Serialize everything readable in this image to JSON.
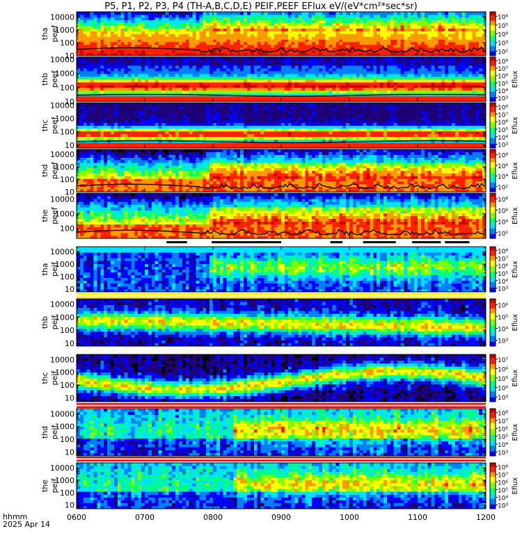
{
  "title": "P5, P1, P2, P3, P4 (TH-A,B,C,D,E) PEIF,PEEF EFlux eV/(eV*cm²*sec*sr)",
  "x_axis": {
    "label_line1": "hhmm",
    "label_line2": "2025 Apr 14",
    "ticks": [
      "0600",
      "0700",
      "0800",
      "0900",
      "1000",
      "1100",
      "1200"
    ]
  },
  "colors": {
    "colormap": [
      "#000000",
      "#1e0078",
      "#0000ff",
      "#0080ff",
      "#00e0ff",
      "#00ff80",
      "#80ff00",
      "#ffff00",
      "#ff9900",
      "#ff2200",
      "#cc0000"
    ],
    "strip_red": "#ff0000",
    "strip_yellow": "#ffee00",
    "trace": "#000000"
  },
  "chart_data": [
    {
      "type": "heatmap",
      "panel": "tha peef",
      "ylabel_top": "tha",
      "ylabel_bottom": "peef",
      "y_ticks": [
        "10",
        "100",
        "1000",
        "10000"
      ],
      "y_scale": "log",
      "y_range": [
        10,
        25000
      ],
      "colorbar_label": "",
      "colorbar_ticks": [
        "10²",
        "10³",
        "10⁴",
        "10⁵",
        "10⁶"
      ],
      "has_trace": true,
      "strip_above": ""
    },
    {
      "type": "heatmap",
      "panel": "thb peef",
      "ylabel_top": "thb",
      "ylabel_bottom": "peef",
      "y_ticks": [
        "10",
        "100",
        "1000",
        "10000"
      ],
      "y_scale": "log",
      "y_range": [
        10,
        15000
      ],
      "colorbar_label": "Eflux",
      "colorbar_ticks": [
        "10³",
        "10⁴",
        "10⁵",
        "10⁶",
        "10⁷",
        "10⁸"
      ],
      "has_trace": true,
      "strip_above": ""
    },
    {
      "type": "heatmap",
      "panel": "thc peef",
      "ylabel_top": "thc",
      "ylabel_bottom": "peef",
      "y_ticks": [
        "10",
        "100",
        "1000",
        "10000"
      ],
      "y_scale": "log",
      "y_range": [
        6,
        15000
      ],
      "colorbar_label": "Eflux",
      "colorbar_ticks": [
        "10³",
        "10⁴",
        "10⁵",
        "10⁶",
        "10⁷",
        "10⁸"
      ],
      "has_trace": true,
      "strip_above": ""
    },
    {
      "type": "heatmap",
      "panel": "thd peef",
      "ylabel_top": "thd",
      "ylabel_bottom": "peef",
      "y_ticks": [
        "10",
        "100",
        "1000",
        "10000"
      ],
      "y_scale": "log",
      "y_range": [
        10,
        25000
      ],
      "colorbar_label": "Eflux",
      "colorbar_ticks": [
        "10²",
        "10⁴",
        "10⁶",
        "10⁸"
      ],
      "has_trace": true,
      "strip_above": ""
    },
    {
      "type": "heatmap",
      "panel": "the peef",
      "ylabel_top": "the",
      "ylabel_bottom": "peef",
      "y_ticks": [
        "100",
        "1000",
        "10000"
      ],
      "y_scale": "log",
      "y_range": [
        20,
        25000
      ],
      "colorbar_label": "Eflux",
      "colorbar_ticks": [
        "10²",
        "10⁴",
        "10⁶",
        "10⁸"
      ],
      "has_trace": true,
      "strip_above": ""
    },
    {
      "type": "heatmap",
      "panel": "tha peif",
      "ylabel_top": "tha",
      "ylabel_bottom": "peif",
      "y_ticks": [
        "10",
        "100",
        "1000",
        "10000"
      ],
      "y_scale": "log",
      "y_range": [
        6,
        25000
      ],
      "colorbar_label": "Eflux",
      "colorbar_ticks": [
        "10³",
        "10⁴",
        "10⁵",
        "10⁶",
        "10⁷",
        "10⁸"
      ],
      "has_trace": false,
      "strip_above": "black"
    },
    {
      "type": "heatmap",
      "panel": "thb peif",
      "ylabel_top": "thb",
      "ylabel_bottom": "peif",
      "y_ticks": [
        "10",
        "100",
        "1000",
        "10000"
      ],
      "y_scale": "log",
      "y_range": [
        6,
        25000
      ],
      "colorbar_label": "Eflux",
      "colorbar_ticks": [
        "10³",
        "10⁴",
        "10⁵",
        "10⁶"
      ],
      "has_trace": false,
      "strip_above": "yellow"
    },
    {
      "type": "heatmap",
      "panel": "thc peif",
      "ylabel_top": "thc",
      "ylabel_bottom": "peif",
      "y_ticks": [
        "10",
        "100",
        "1000",
        "10000"
      ],
      "y_scale": "log",
      "y_range": [
        5,
        25000
      ],
      "colorbar_label": "Eflux",
      "colorbar_ticks": [
        "10³",
        "10⁴",
        "10⁵",
        "10⁶",
        "10⁷"
      ],
      "has_trace": false,
      "strip_above": ""
    },
    {
      "type": "heatmap",
      "panel": "thd peif",
      "ylabel_top": "thd",
      "ylabel_bottom": "peif",
      "y_ticks": [
        "10",
        "100",
        "1000",
        "10000"
      ],
      "y_scale": "log",
      "y_range": [
        5,
        25000
      ],
      "colorbar_label": "Eflux",
      "colorbar_ticks": [
        "10³",
        "10⁴",
        "10⁵",
        "10⁶",
        "10⁷",
        "10⁸"
      ],
      "has_trace": false,
      "strip_above": "red"
    },
    {
      "type": "heatmap",
      "panel": "the peif",
      "ylabel_top": "the",
      "ylabel_bottom": "peif",
      "y_ticks": [
        "10",
        "100",
        "1000",
        "10000"
      ],
      "y_scale": "log",
      "y_range": [
        5,
        25000
      ],
      "colorbar_label": "Eflux",
      "colorbar_ticks": [
        "10³",
        "10⁴",
        "10⁵",
        "10⁶",
        "10⁷",
        "10⁸"
      ],
      "has_trace": false,
      "strip_above": "red"
    }
  ]
}
